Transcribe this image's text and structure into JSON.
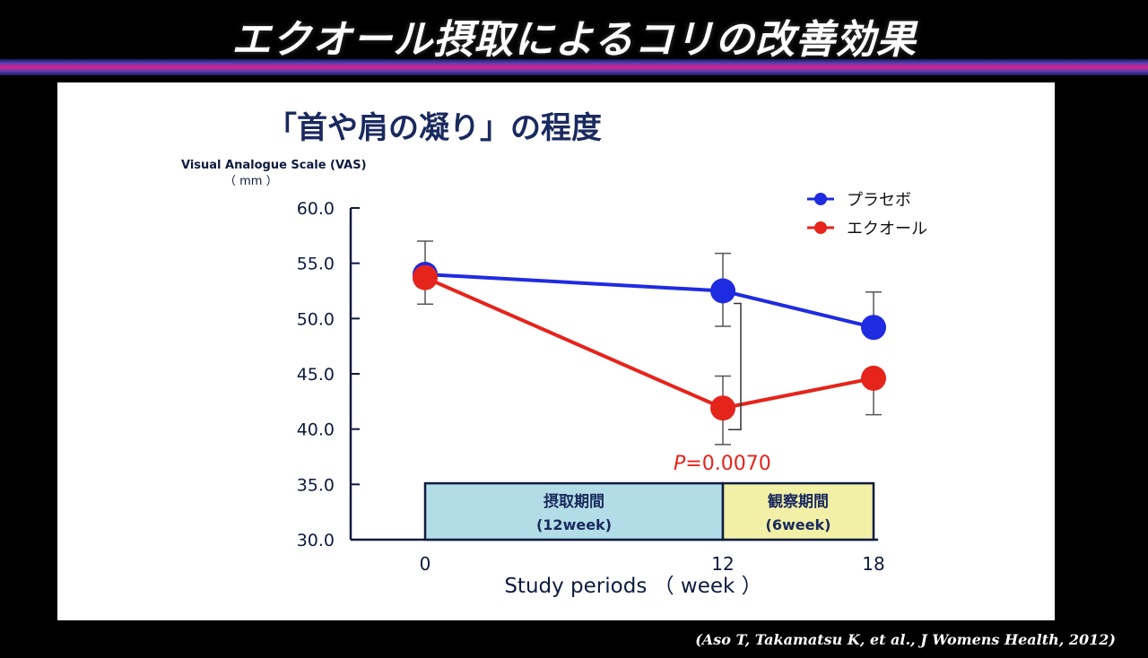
{
  "slide": {
    "title": "エクオール摂取によるコリの改善効果",
    "citation": "(Aso T, Takamatsu K, et al., J Womens Health, 2012)"
  },
  "colors": {
    "placebo": "#1f2be0",
    "equol": "#e5241b",
    "intake_box": "#b2dde7",
    "observe_box": "#f2f0a6",
    "axis": "#0d1b3e"
  },
  "chart_data": {
    "type": "line",
    "title": "「首や肩の凝り」の程度",
    "ylabel": "Visual Analogue Scale (VAS)",
    "yunit": "（ mm ）",
    "xlabel": "Study periods （ week ）",
    "x": [
      0,
      12,
      18
    ],
    "x_tick_labels": [
      "0",
      "12",
      "18"
    ],
    "ylim": [
      30,
      60
    ],
    "y_ticks": [
      "30.0",
      "35.0",
      "40.0",
      "45.0",
      "50.0",
      "55.0",
      "60.0"
    ],
    "series": [
      {
        "name": "プラセボ",
        "color_key": "placebo",
        "values": [
          54.0,
          52.5,
          49.2
        ],
        "err_up": [
          3.0,
          3.4,
          3.2
        ],
        "err_down": [
          0,
          3.2,
          0
        ]
      },
      {
        "name": "エクオール",
        "color_key": "equol",
        "values": [
          53.7,
          41.9,
          44.6
        ],
        "err_up": [
          0,
          2.9,
          0
        ],
        "err_down": [
          2.4,
          3.3,
          3.3
        ]
      }
    ],
    "annotation": {
      "p_label": "P",
      "p_value": "=0.0070",
      "x": 12
    },
    "periods": [
      {
        "label": "摂取期間",
        "sublabel": "(12week)",
        "from": 0,
        "to": 12,
        "color_key": "intake_box"
      },
      {
        "label": "観察期間",
        "sublabel": "(6week)",
        "from": 12,
        "to": 18,
        "color_key": "observe_box"
      }
    ],
    "legend_position": "top-right",
    "grid": false
  }
}
